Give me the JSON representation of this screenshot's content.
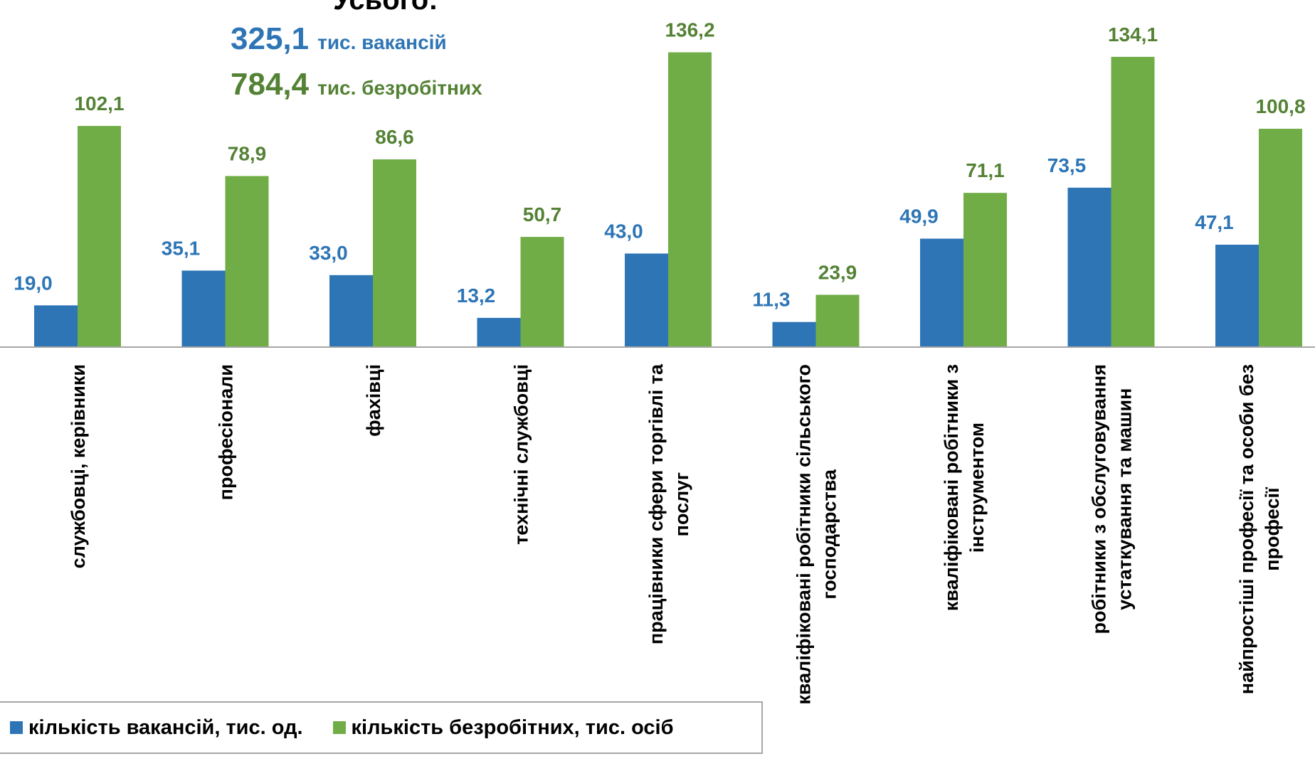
{
  "summary": {
    "heading": "Усього:",
    "vacancies_value": "325,1",
    "vacancies_label": "тис. вакансій",
    "unemployed_value": "784,4",
    "unemployed_label": "тис. безробітних"
  },
  "colors": {
    "vacancies": "#2e75b6",
    "unemployed": "#70ad47",
    "axis": "#a6a6a6",
    "label": "#000000"
  },
  "legend": {
    "items": [
      {
        "label": "кількість вакансій, тис. од.",
        "color": "#2e75b6"
      },
      {
        "label": "кількість безробітних, тис. осіб",
        "color": "#70ad47"
      }
    ]
  },
  "chart_data": {
    "type": "bar",
    "legend_position": "bottom-left",
    "grid": false,
    "categories": [
      [
        "службовці, керівники"
      ],
      [
        "професіонали"
      ],
      [
        "фахівці"
      ],
      [
        "технічні службовці"
      ],
      [
        "працівники сфери торгівлі та",
        "послуг"
      ],
      [
        "кваліфіковані робітники сільського",
        "господарства"
      ],
      [
        "кваліфіковані робітники з",
        "інструментом"
      ],
      [
        "робітники з обслуговування",
        "устаткування та машин"
      ],
      [
        "найпростіші професії та особи без",
        "професії"
      ]
    ],
    "series": [
      {
        "name": "кількість вакансій, тис. од.",
        "values": [
          19.0,
          35.1,
          33.0,
          13.2,
          43.0,
          11.3,
          49.9,
          73.5,
          47.1
        ],
        "labels": [
          "19,0",
          "35,1",
          "33,0",
          "13,2",
          "43,0",
          "11,3",
          "49,9",
          "73,5",
          "47,1"
        ]
      },
      {
        "name": "кількість безробітних, тис. осіб",
        "values": [
          102.1,
          78.9,
          86.6,
          50.7,
          136.2,
          23.9,
          71.1,
          134.1,
          100.8
        ],
        "labels": [
          "102,1",
          "78,9",
          "86,6",
          "50,7",
          "136,2",
          "23,9",
          "71,1",
          "134,1",
          "100,8"
        ]
      }
    ],
    "ylim": [
      0,
      140
    ]
  }
}
